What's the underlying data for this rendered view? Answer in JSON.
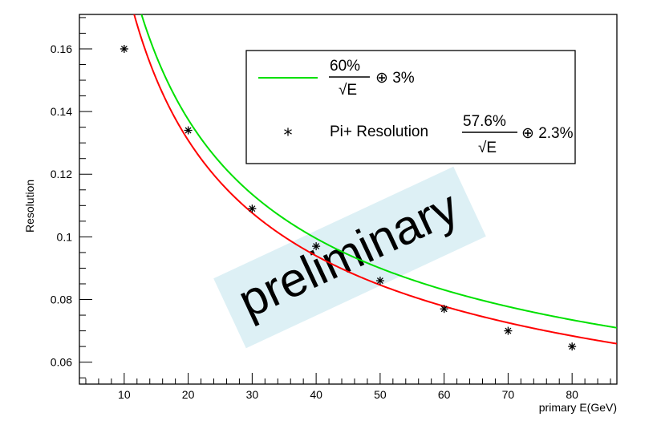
{
  "chart_data": {
    "type": "scatter",
    "title": "",
    "xlabel": "primary E(GeV)",
    "ylabel": "Resolution",
    "xlim": [
      3,
      87
    ],
    "ylim": [
      0.053,
      0.171
    ],
    "x_ticks": [
      "10",
      "20",
      "30",
      "40",
      "50",
      "60",
      "70",
      "80"
    ],
    "y_ticks": [
      "0.06",
      "0.08",
      "0.1",
      "0.12",
      "0.14",
      "0.16"
    ],
    "grid": false,
    "legend_position": "top-right",
    "series": [
      {
        "name_fraction_num": "60%",
        "name_fraction_den": "√E",
        "name_suffix": "⊕ 3%",
        "type": "line",
        "color": "#00e000",
        "stochastic": 0.6,
        "constant": 0.03
      },
      {
        "name_prefix": "Pi+ Resolution",
        "name_fraction_num": "57.6%",
        "name_fraction_den": "√E",
        "name_suffix": "⊕ 2.3%",
        "type": "scatter",
        "marker": "asterisk",
        "color": "#000000",
        "x": [
          10,
          20,
          30,
          40,
          50,
          60,
          70,
          80
        ],
        "y": [
          0.16,
          0.134,
          0.109,
          0.097,
          0.086,
          0.077,
          0.07,
          0.065
        ]
      },
      {
        "type": "line",
        "color": "#ff0000",
        "stochastic": 0.576,
        "constant": 0.023
      }
    ],
    "annotations": [
      {
        "text": "preliminary",
        "background": "#ddf0f5"
      }
    ]
  }
}
